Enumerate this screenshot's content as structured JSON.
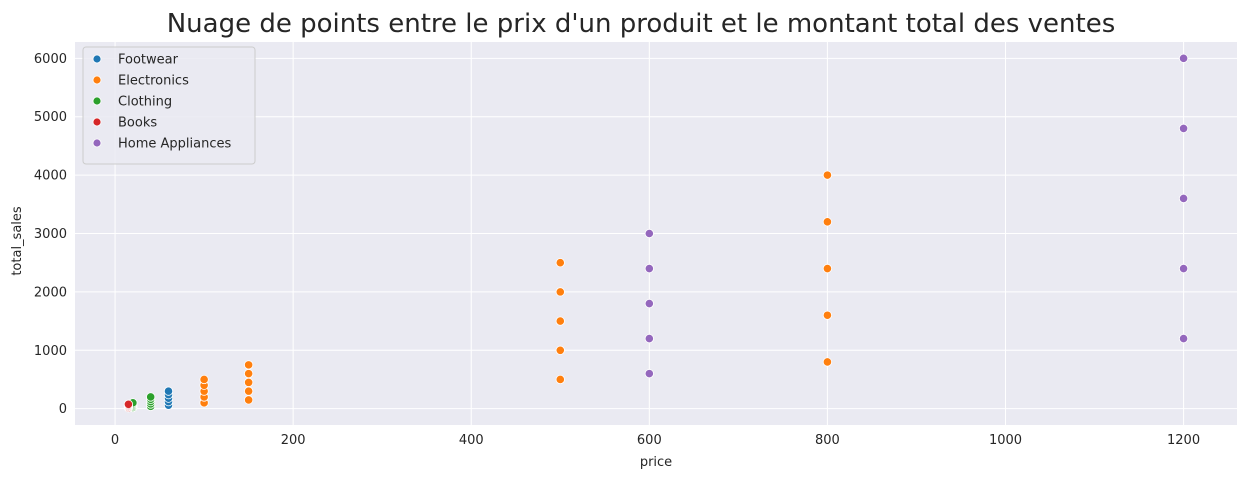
{
  "chart_data": {
    "type": "scatter",
    "title": "Nuage de points entre le prix d'un produit et le montant total des ventes",
    "xlabel": "price",
    "ylabel": "total_sales",
    "xlim": [
      -45,
      1260
    ],
    "ylim": [
      -280,
      6280
    ],
    "xticks": [
      0,
      200,
      400,
      600,
      800,
      1000,
      1200
    ],
    "yticks": [
      0,
      1000,
      2000,
      3000,
      4000,
      5000,
      6000
    ],
    "grid": true,
    "legend_placement": "top-left",
    "background": "#eaeaf2",
    "series": [
      {
        "name": "Footwear",
        "color": "#1f77b4",
        "points": [
          [
            60,
            60
          ],
          [
            60,
            120
          ],
          [
            60,
            180
          ],
          [
            60,
            240
          ],
          [
            60,
            300
          ]
        ]
      },
      {
        "name": "Electronics",
        "color": "#ff7f0e",
        "points": [
          [
            100,
            100
          ],
          [
            100,
            200
          ],
          [
            100,
            300
          ],
          [
            100,
            400
          ],
          [
            100,
            500
          ],
          [
            150,
            150
          ],
          [
            150,
            300
          ],
          [
            150,
            450
          ],
          [
            150,
            600
          ],
          [
            150,
            750
          ],
          [
            500,
            500
          ],
          [
            500,
            1000
          ],
          [
            500,
            1500
          ],
          [
            500,
            2000
          ],
          [
            500,
            2500
          ],
          [
            800,
            800
          ],
          [
            800,
            1600
          ],
          [
            800,
            2400
          ],
          [
            800,
            3200
          ],
          [
            800,
            4000
          ]
        ]
      },
      {
        "name": "Clothing",
        "color": "#2ca02c",
        "points": [
          [
            20,
            20
          ],
          [
            20,
            40
          ],
          [
            20,
            60
          ],
          [
            20,
            80
          ],
          [
            20,
            100
          ],
          [
            40,
            40
          ],
          [
            40,
            80
          ],
          [
            40,
            120
          ],
          [
            40,
            160
          ],
          [
            40,
            200
          ]
        ]
      },
      {
        "name": "Books",
        "color": "#d62728",
        "points": [
          [
            15,
            15
          ],
          [
            15,
            30
          ],
          [
            15,
            45
          ],
          [
            15,
            60
          ],
          [
            15,
            75
          ]
        ]
      },
      {
        "name": "Home Appliances",
        "color": "#9467bd",
        "points": [
          [
            600,
            600
          ],
          [
            600,
            1200
          ],
          [
            600,
            1800
          ],
          [
            600,
            2400
          ],
          [
            600,
            3000
          ],
          [
            1200,
            1200
          ],
          [
            1200,
            2400
          ],
          [
            1200,
            3600
          ],
          [
            1200,
            4800
          ],
          [
            1200,
            6000
          ]
        ]
      }
    ]
  }
}
